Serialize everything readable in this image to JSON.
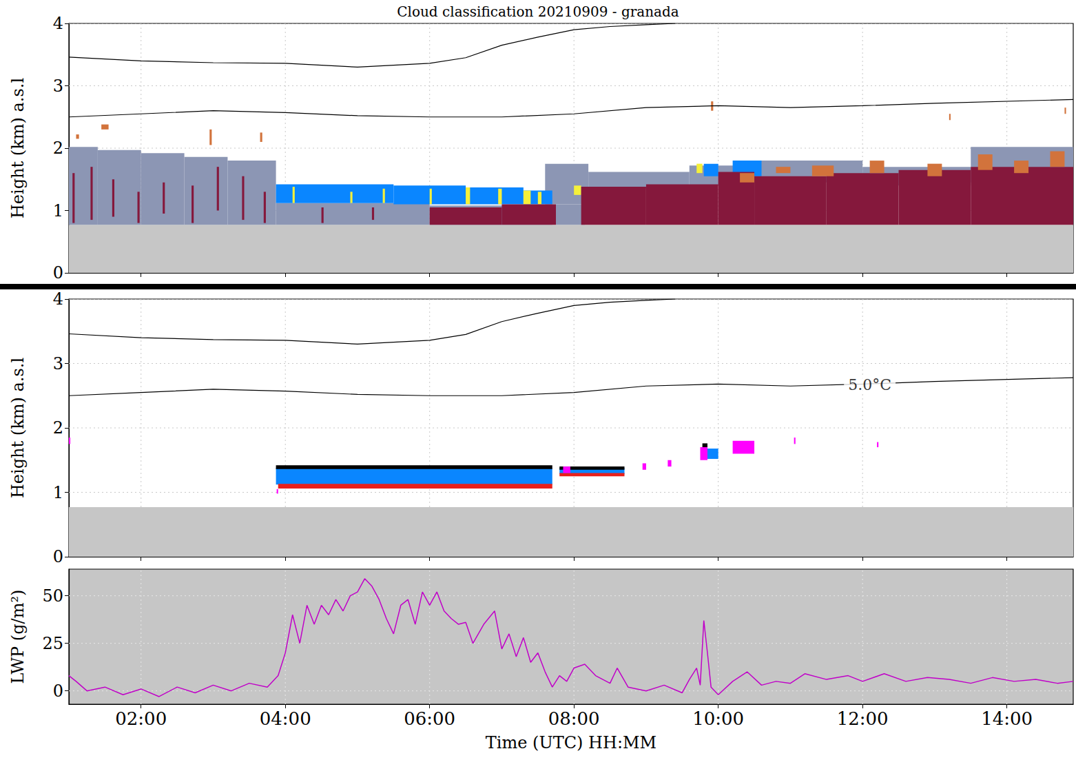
{
  "chart_data": [
    {
      "type": "rect",
      "title": "Cloud classification 20210909 - granada",
      "ylabel": "Height (km) a.s.l",
      "xlim": [
        1,
        14.92
      ],
      "xticks": [
        2,
        4,
        6,
        8,
        10,
        12,
        14
      ],
      "ylim": [
        0,
        4
      ],
      "yticks": [
        0,
        1,
        2,
        3,
        4
      ],
      "grid": true,
      "tick_labels": "y",
      "series": [
        {
          "color": "#c6c6c6",
          "values": [
            [
              1,
              14.92,
              0,
              0.77
            ]
          ]
        },
        {
          "color": "#8c96b4",
          "values": [
            [
              1.0,
              1.4,
              0.77,
              2.02
            ],
            [
              1.4,
              2.0,
              0.77,
              1.97
            ],
            [
              2.0,
              2.6,
              0.77,
              1.92
            ],
            [
              2.6,
              3.2,
              0.77,
              1.86
            ],
            [
              3.2,
              3.87,
              0.77,
              1.8
            ],
            [
              3.87,
              6.0,
              0.77,
              1.12
            ],
            [
              6.0,
              7.7,
              0.77,
              1.08
            ],
            [
              7.6,
              8.2,
              1.1,
              1.75
            ],
            [
              8.2,
              9.6,
              1.35,
              1.62
            ],
            [
              9.6,
              10.5,
              1.4,
              1.72
            ],
            [
              10.5,
              12.0,
              1.45,
              1.8
            ],
            [
              12.0,
              13.5,
              1.4,
              1.7
            ],
            [
              13.5,
              14.92,
              1.45,
              2.02
            ],
            [
              7.75,
              8.15,
              0.77,
              1.1
            ]
          ]
        },
        {
          "color": "#0a86ff",
          "values": [
            [
              3.87,
              5.5,
              1.12,
              1.42
            ],
            [
              5.5,
              6.5,
              1.1,
              1.4
            ],
            [
              6.5,
              7.3,
              1.1,
              1.37
            ],
            [
              7.3,
              7.7,
              1.1,
              1.32
            ],
            [
              8.6,
              8.75,
              1.3,
              1.38
            ],
            [
              9.8,
              10.0,
              1.55,
              1.75
            ],
            [
              10.2,
              10.6,
              1.55,
              1.8
            ]
          ]
        },
        {
          "color": "#f5f03a",
          "values": [
            [
              4.1,
              4.13,
              1.12,
              1.38
            ],
            [
              4.9,
              4.93,
              1.12,
              1.3
            ],
            [
              5.35,
              5.38,
              1.12,
              1.35
            ],
            [
              6.0,
              6.03,
              1.1,
              1.35
            ],
            [
              6.5,
              6.56,
              1.1,
              1.37
            ],
            [
              6.95,
              7.0,
              1.1,
              1.35
            ],
            [
              7.3,
              7.4,
              1.1,
              1.32
            ],
            [
              7.5,
              7.55,
              1.1,
              1.3
            ],
            [
              8.0,
              8.1,
              1.25,
              1.4
            ],
            [
              8.5,
              8.6,
              1.25,
              1.38
            ],
            [
              9.7,
              9.78,
              1.6,
              1.75
            ]
          ]
        },
        {
          "color": "#85183c",
          "values": [
            [
              1.05,
              1.08,
              0.8,
              1.6
            ],
            [
              1.3,
              1.33,
              0.85,
              1.7
            ],
            [
              1.6,
              1.63,
              0.9,
              1.5
            ],
            [
              1.95,
              1.98,
              0.8,
              1.3
            ],
            [
              2.3,
              2.33,
              0.95,
              1.45
            ],
            [
              2.7,
              2.73,
              0.8,
              1.4
            ],
            [
              3.05,
              3.08,
              1.0,
              1.7
            ],
            [
              3.4,
              3.43,
              0.85,
              1.55
            ],
            [
              3.7,
              3.73,
              0.8,
              1.3
            ],
            [
              4.5,
              4.53,
              0.8,
              1.05
            ],
            [
              5.2,
              5.23,
              0.85,
              1.05
            ],
            [
              6.0,
              7.0,
              0.77,
              1.05
            ],
            [
              7.0,
              7.75,
              0.77,
              1.1
            ],
            [
              8.1,
              9.0,
              0.77,
              1.38
            ],
            [
              9.0,
              10.0,
              0.77,
              1.42
            ],
            [
              10.0,
              10.5,
              0.77,
              1.62
            ],
            [
              10.5,
              11.5,
              0.77,
              1.55
            ],
            [
              11.5,
              12.5,
              0.77,
              1.6
            ],
            [
              12.5,
              13.5,
              0.77,
              1.65
            ],
            [
              13.5,
              14.92,
              0.77,
              1.7
            ]
          ]
        },
        {
          "color": "#d2733c",
          "values": [
            [
              1.45,
              1.55,
              2.3,
              2.38
            ],
            [
              1.1,
              1.14,
              2.15,
              2.22
            ],
            [
              2.95,
              2.98,
              2.05,
              2.3
            ],
            [
              3.65,
              3.68,
              2.1,
              2.25
            ],
            [
              10.3,
              10.5,
              1.45,
              1.6
            ],
            [
              10.8,
              11.0,
              1.6,
              1.7
            ],
            [
              11.3,
              11.6,
              1.55,
              1.72
            ],
            [
              12.1,
              12.3,
              1.6,
              1.8
            ],
            [
              12.9,
              13.1,
              1.55,
              1.75
            ],
            [
              13.6,
              13.8,
              1.65,
              1.9
            ],
            [
              14.1,
              14.3,
              1.6,
              1.8
            ],
            [
              14.6,
              14.8,
              1.7,
              1.95
            ],
            [
              9.9,
              9.93,
              2.6,
              2.75
            ],
            [
              13.2,
              13.22,
              2.45,
              2.55
            ],
            [
              14.8,
              14.82,
              2.55,
              2.65
            ]
          ]
        },
        {
          "type": "line",
          "color": "#000000",
          "x": [
            1,
            2,
            3,
            4,
            5,
            6,
            6.5,
            7,
            7.5,
            8,
            8.5,
            9,
            9.4
          ],
          "values": [
            3.46,
            3.4,
            3.37,
            3.36,
            3.3,
            3.36,
            3.45,
            3.65,
            3.78,
            3.9,
            3.95,
            3.98,
            4.0
          ]
        },
        {
          "type": "line",
          "color": "#000000",
          "x": [
            1,
            2,
            3,
            4,
            5,
            6,
            7,
            8,
            9,
            10,
            11,
            12,
            13,
            14.92
          ],
          "values": [
            2.5,
            2.55,
            2.6,
            2.57,
            2.52,
            2.5,
            2.5,
            2.55,
            2.65,
            2.68,
            2.65,
            2.68,
            2.72,
            2.78
          ]
        }
      ]
    },
    {
      "type": "rect",
      "ylabel": "Height (km) a.s.l",
      "xlim": [
        1,
        14.92
      ],
      "xticks": [
        2,
        4,
        6,
        8,
        10,
        12,
        14
      ],
      "ylim": [
        0,
        4
      ],
      "yticks": [
        0,
        1,
        2,
        3,
        4
      ],
      "grid": true,
      "tick_labels": "y",
      "series": [
        {
          "color": "#c6c6c6",
          "values": [
            [
              1,
              14.92,
              0,
              0.77
            ]
          ]
        },
        {
          "color": "#0a86ff",
          "values": [
            [
              3.87,
              7.7,
              1.12,
              1.38
            ],
            [
              7.8,
              8.7,
              1.28,
              1.38
            ],
            [
              9.8,
              10.0,
              1.52,
              1.68
            ]
          ]
        },
        {
          "color": "#000000",
          "values": [
            [
              3.87,
              7.7,
              1.36,
              1.42
            ],
            [
              7.8,
              8.7,
              1.35,
              1.4
            ],
            [
              9.78,
              9.85,
              1.65,
              1.76
            ]
          ]
        },
        {
          "color": "#e8201c",
          "values": [
            [
              3.9,
              7.7,
              1.06,
              1.13
            ],
            [
              7.8,
              8.7,
              1.25,
              1.3
            ]
          ]
        },
        {
          "color": "#ff00ff",
          "values": [
            [
              1.0,
              1.02,
              1.75,
              1.85
            ],
            [
              3.88,
              3.9,
              0.98,
              1.05
            ],
            [
              7.85,
              7.95,
              1.3,
              1.4
            ],
            [
              8.95,
              9.0,
              1.35,
              1.45
            ],
            [
              9.3,
              9.35,
              1.4,
              1.5
            ],
            [
              9.75,
              9.85,
              1.5,
              1.7
            ],
            [
              10.2,
              10.5,
              1.6,
              1.8
            ],
            [
              11.05,
              11.07,
              1.75,
              1.85
            ],
            [
              12.2,
              12.22,
              1.7,
              1.78
            ]
          ]
        },
        {
          "type": "line",
          "color": "#000000",
          "x": [
            1,
            2,
            3,
            4,
            5,
            6,
            6.5,
            7,
            7.5,
            8,
            8.5,
            9,
            9.4
          ],
          "values": [
            3.46,
            3.4,
            3.37,
            3.36,
            3.3,
            3.36,
            3.45,
            3.65,
            3.78,
            3.9,
            3.95,
            3.98,
            4.0
          ]
        },
        {
          "type": "line",
          "color": "#000000",
          "x": [
            1,
            2,
            3,
            4,
            5,
            6,
            7,
            8,
            9,
            10,
            11,
            12,
            13,
            14.92
          ],
          "values": [
            2.5,
            2.55,
            2.6,
            2.57,
            2.52,
            2.5,
            2.5,
            2.55,
            2.65,
            2.68,
            2.65,
            2.68,
            2.72,
            2.78
          ]
        }
      ],
      "annotations": [
        {
          "text": "5.0°C",
          "x": 12.1,
          "y": 2.67
        }
      ]
    },
    {
      "type": "line",
      "xlabel": "Time (UTC) HH:MM",
      "ylabel": "LWP (g/m²)",
      "xlim": [
        1,
        14.92
      ],
      "xticks": [
        {
          "value": 2,
          "label": "02:00"
        },
        {
          "value": 4,
          "label": "04:00"
        },
        {
          "value": 6,
          "label": "06:00"
        },
        {
          "value": 8,
          "label": "08:00"
        },
        {
          "value": 10,
          "label": "10:00"
        },
        {
          "value": 12,
          "label": "12:00"
        },
        {
          "value": 14,
          "label": "14:00"
        }
      ],
      "ylim": [
        -7,
        64
      ],
      "yticks": [
        0,
        25,
        50
      ],
      "grid": true,
      "series": [
        {
          "color": "#c000c8",
          "x": [
            1.0,
            1.1,
            1.25,
            1.5,
            1.75,
            2.0,
            2.25,
            2.5,
            2.75,
            3.0,
            3.25,
            3.5,
            3.75,
            3.9,
            4.0,
            4.1,
            4.2,
            4.3,
            4.4,
            4.5,
            4.6,
            4.7,
            4.8,
            4.9,
            5.0,
            5.1,
            5.2,
            5.3,
            5.4,
            5.5,
            5.6,
            5.7,
            5.8,
            5.9,
            6.0,
            6.1,
            6.2,
            6.3,
            6.4,
            6.5,
            6.6,
            6.75,
            6.9,
            7.0,
            7.1,
            7.2,
            7.3,
            7.4,
            7.5,
            7.6,
            7.7,
            7.8,
            7.9,
            8.0,
            8.15,
            8.3,
            8.5,
            8.6,
            8.75,
            9.0,
            9.25,
            9.5,
            9.6,
            9.7,
            9.75,
            9.8,
            9.85,
            9.9,
            10.0,
            10.2,
            10.4,
            10.6,
            10.8,
            11.0,
            11.2,
            11.5,
            11.8,
            12.0,
            12.3,
            12.6,
            12.9,
            13.2,
            13.5,
            13.8,
            14.1,
            14.4,
            14.7,
            14.92
          ],
          "values": [
            8,
            5,
            0,
            2,
            -2,
            1,
            -3,
            2,
            -1,
            3,
            0,
            4,
            2,
            8,
            20,
            40,
            25,
            45,
            35,
            45,
            40,
            48,
            42,
            50,
            52,
            59,
            55,
            48,
            38,
            30,
            45,
            48,
            35,
            52,
            45,
            52,
            42,
            38,
            35,
            36,
            25,
            35,
            42,
            22,
            30,
            18,
            28,
            15,
            20,
            10,
            2,
            8,
            5,
            12,
            14,
            8,
            4,
            12,
            2,
            0,
            3,
            -1,
            6,
            12,
            3,
            37,
            20,
            2,
            -2,
            5,
            10,
            3,
            5,
            4,
            9,
            6,
            8,
            5,
            9,
            5,
            7,
            6,
            4,
            7,
            5,
            6,
            4,
            5
          ]
        }
      ]
    }
  ]
}
